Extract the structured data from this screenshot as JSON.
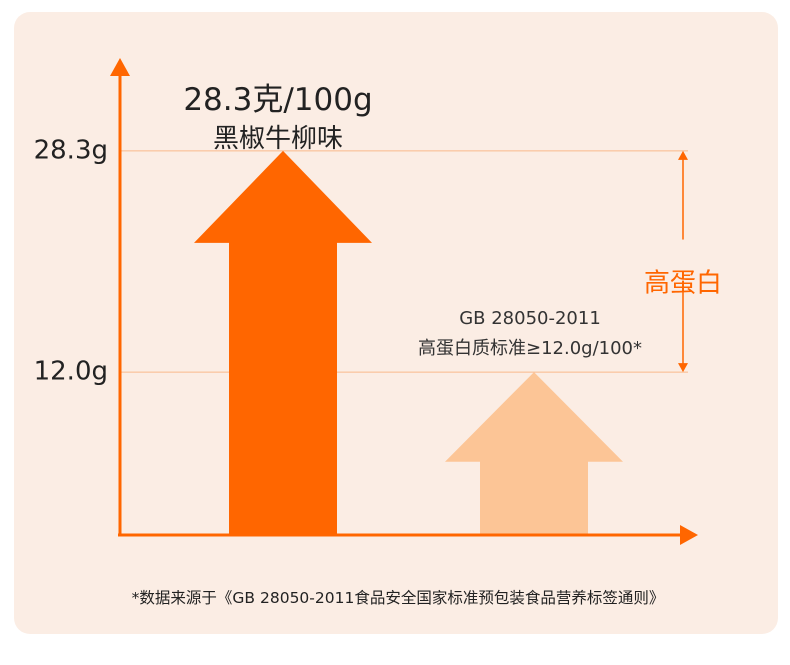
{
  "chart_data": {
    "type": "bar",
    "categories": [
      "黑椒牛柳味",
      "GB 28050-2011 高蛋白质标准"
    ],
    "values": [
      28.3,
      12.0
    ],
    "unit": "g/100g",
    "ylim": [
      0,
      35
    ],
    "yticks": [
      "28.3g",
      "12.0g"
    ],
    "top_label": "28.3克/100g",
    "top_sublabel": "黑椒牛柳味",
    "standard_line1": "GB 28050-2011",
    "standard_line2": "高蛋白质标准≥12.0g/100*",
    "range_label": "高蛋白",
    "footnote": "*数据来源于《GB 28050-2011食品安全国家标准预包装食品营养标签通则》",
    "grid": false
  },
  "colors": {
    "primary": "#ff6600",
    "secondary": "#fcc596",
    "background": "#fbede4",
    "text": "#222222",
    "guide_line": "#f9b98a"
  }
}
